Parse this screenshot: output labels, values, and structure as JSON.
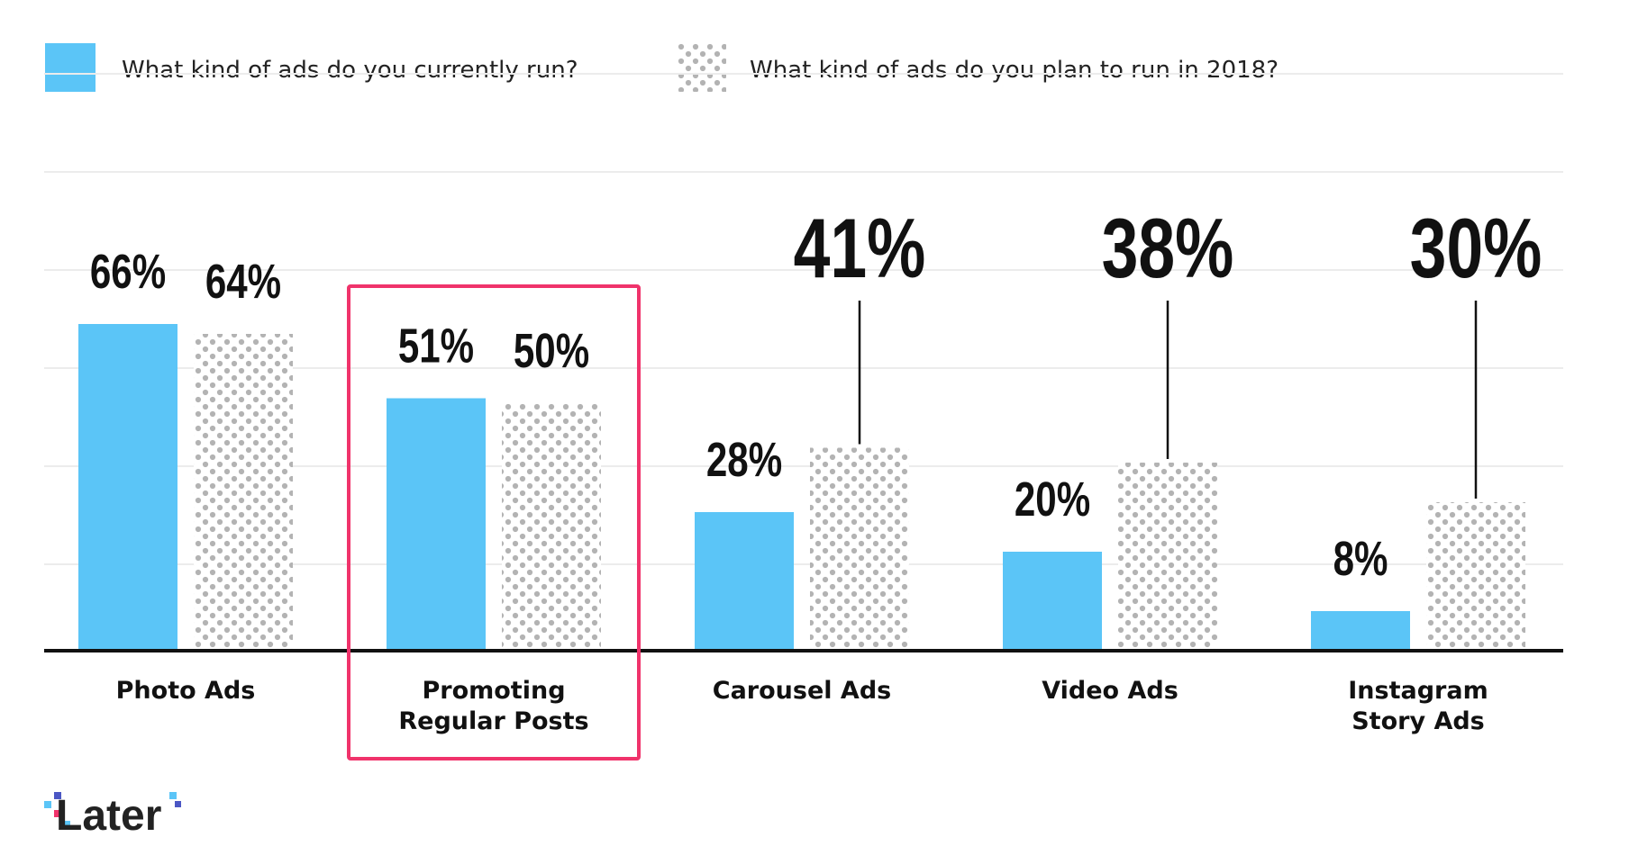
{
  "chart_data": {
    "type": "bar",
    "categories": [
      [
        "Photo Ads"
      ],
      [
        "Promoting",
        "Regular Posts"
      ],
      [
        "Carousel Ads"
      ],
      [
        "Video Ads"
      ],
      [
        "Instagram",
        "Story Ads"
      ]
    ],
    "series": [
      {
        "name": "What kind of ads do you currently run?",
        "values": [
          66,
          51,
          28,
          20,
          8
        ],
        "labels": [
          "66%",
          "51%",
          "28%",
          "20%",
          "8%"
        ],
        "color": "#5bc5f7",
        "pattern": "solid"
      },
      {
        "name": "What kind of ads do you plan to run in 2018?",
        "values": [
          64,
          50,
          41,
          38,
          30
        ],
        "labels": [
          "64%",
          "50%",
          "41%",
          "38%",
          "30%"
        ],
        "color": "#9a9a9a",
        "pattern": "dots"
      }
    ],
    "value_unit": "%",
    "ylim": [
      0,
      100
    ],
    "grid": true,
    "legend": "top-left",
    "highlighted_category": 1,
    "highlight_color": "#f0336b",
    "callout_categories": [
      2,
      3,
      4
    ]
  },
  "logo": {
    "text": "Later"
  }
}
